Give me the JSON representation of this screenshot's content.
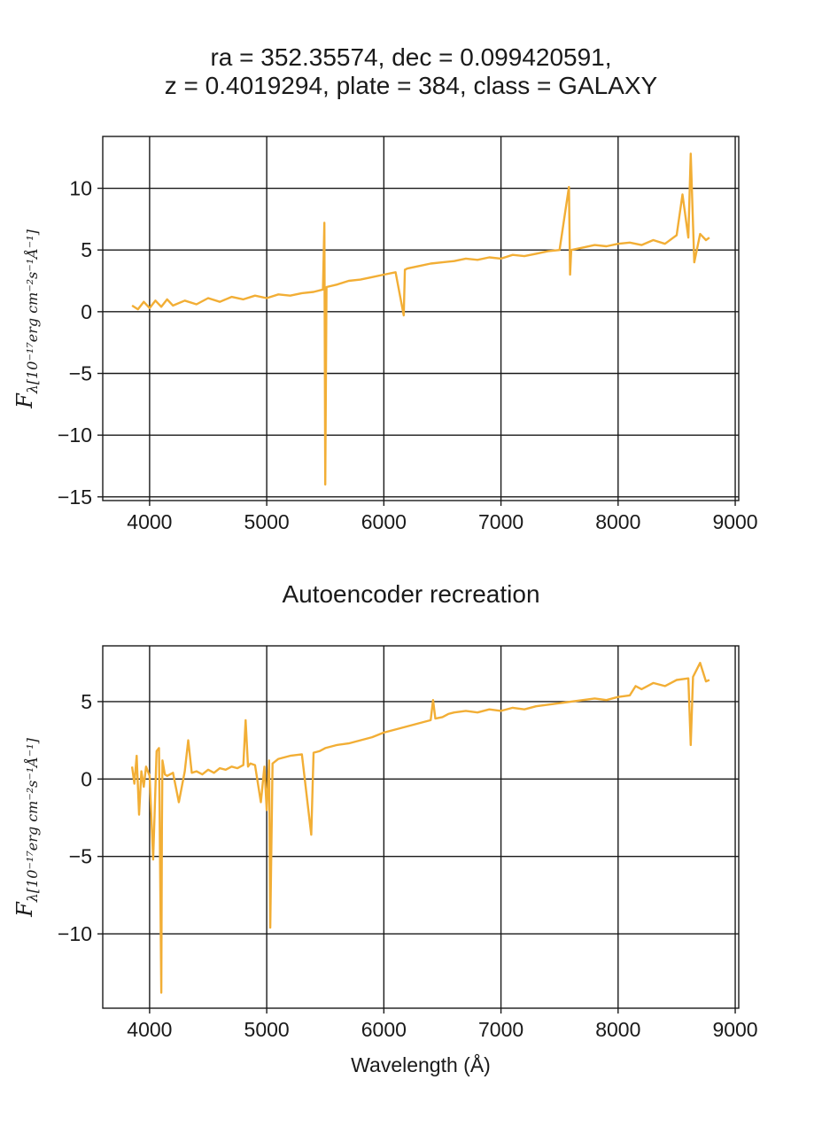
{
  "chart_data": [
    {
      "type": "line",
      "title_lines": [
        "ra = 352.35574, dec = 0.099420591,",
        "z = 0.4019294, plate = 384, class = GALAXY"
      ],
      "xlabel": "",
      "ylabel_main": "F",
      "ylabel_sub": "λ[10⁻¹⁷erg cm⁻²s⁻¹Å⁻¹]",
      "xlim": [
        3600,
        9030
      ],
      "ylim": [
        -15.3,
        14.2
      ],
      "xticks": [
        4000,
        5000,
        6000,
        7000,
        8000,
        9000
      ],
      "yticks": [
        -15,
        -10,
        -5,
        0,
        5,
        10
      ],
      "grid": true,
      "color": "#f2ae35",
      "x": [
        3850,
        3900,
        3950,
        4000,
        4050,
        4100,
        4150,
        4200,
        4300,
        4400,
        4500,
        4600,
        4700,
        4800,
        4900,
        5000,
        5100,
        5200,
        5300,
        5400,
        5480,
        5492,
        5500,
        5510,
        5600,
        5700,
        5800,
        5900,
        6000,
        6100,
        6170,
        6180,
        6200,
        6300,
        6400,
        6500,
        6600,
        6700,
        6800,
        6900,
        7000,
        7100,
        7200,
        7300,
        7400,
        7500,
        7580,
        7590,
        7600,
        7700,
        7800,
        7900,
        8000,
        8100,
        8200,
        8300,
        8400,
        8500,
        8550,
        8600,
        8620,
        8650,
        8700,
        8750,
        8780
      ],
      "y": [
        0.5,
        0.2,
        0.8,
        0.3,
        0.9,
        0.4,
        1.0,
        0.5,
        0.9,
        0.6,
        1.1,
        0.8,
        1.2,
        1.0,
        1.3,
        1.1,
        1.4,
        1.3,
        1.5,
        1.6,
        1.8,
        7.2,
        -14.0,
        2.0,
        2.2,
        2.5,
        2.6,
        2.8,
        3.0,
        3.2,
        -0.3,
        3.4,
        3.5,
        3.7,
        3.9,
        4.0,
        4.1,
        4.3,
        4.2,
        4.4,
        4.3,
        4.6,
        4.5,
        4.7,
        4.9,
        5.0,
        10.1,
        3.0,
        5.0,
        5.2,
        5.4,
        5.3,
        5.5,
        5.6,
        5.4,
        5.8,
        5.5,
        6.2,
        9.5,
        6.0,
        12.8,
        4.0,
        6.3,
        5.8,
        6.0
      ]
    },
    {
      "type": "line",
      "title": "Autoencoder recreation",
      "xlabel": "Wavelength (Å)",
      "ylabel_main": "F",
      "ylabel_sub": "λ[10⁻¹⁷erg cm⁻²s⁻¹Å⁻¹]",
      "xlim": [
        3600,
        9030
      ],
      "ylim": [
        -14.8,
        8.6
      ],
      "xticks": [
        4000,
        5000,
        6000,
        7000,
        8000,
        9000
      ],
      "yticks": [
        -10,
        -5,
        0,
        5
      ],
      "grid": true,
      "color": "#f2ae35",
      "x": [
        3850,
        3870,
        3890,
        3910,
        3930,
        3950,
        3970,
        4000,
        4030,
        4060,
        4080,
        4100,
        4105,
        4110,
        4130,
        4150,
        4200,
        4250,
        4300,
        4330,
        4360,
        4400,
        4450,
        4500,
        4550,
        4600,
        4650,
        4700,
        4750,
        4800,
        4820,
        4840,
        4860,
        4900,
        4950,
        4980,
        5000,
        5020,
        5030,
        5050,
        5100,
        5200,
        5300,
        5380,
        5400,
        5450,
        5500,
        5600,
        5700,
        5800,
        5900,
        6000,
        6100,
        6200,
        6300,
        6400,
        6420,
        6440,
        6500,
        6550,
        6600,
        6700,
        6800,
        6900,
        7000,
        7100,
        7200,
        7300,
        7400,
        7500,
        7600,
        7700,
        7800,
        7900,
        8000,
        8100,
        8150,
        8200,
        8300,
        8400,
        8500,
        8600,
        8620,
        8640,
        8700,
        8750,
        8780
      ],
      "y": [
        0.8,
        -0.3,
        1.5,
        -2.3,
        0.5,
        -0.5,
        0.8,
        0.2,
        -5.2,
        1.8,
        2.0,
        -13.8,
        -3.0,
        1.2,
        0.3,
        0.2,
        0.4,
        -1.5,
        0.5,
        2.5,
        0.4,
        0.5,
        0.3,
        0.6,
        0.4,
        0.7,
        0.6,
        0.8,
        0.7,
        0.9,
        3.8,
        0.8,
        1.0,
        0.9,
        -1.5,
        0.8,
        -2.0,
        1.2,
        -9.6,
        1.0,
        1.3,
        1.5,
        1.6,
        -3.6,
        1.7,
        1.8,
        2.0,
        2.2,
        2.3,
        2.5,
        2.7,
        3.0,
        3.2,
        3.4,
        3.6,
        3.8,
        5.1,
        3.9,
        4.0,
        4.2,
        4.3,
        4.4,
        4.3,
        4.5,
        4.4,
        4.6,
        4.5,
        4.7,
        4.8,
        4.9,
        5.0,
        5.1,
        5.2,
        5.1,
        5.3,
        5.4,
        6.0,
        5.8,
        6.2,
        6.0,
        6.4,
        6.5,
        2.2,
        6.6,
        7.5,
        6.3,
        6.4
      ]
    }
  ]
}
